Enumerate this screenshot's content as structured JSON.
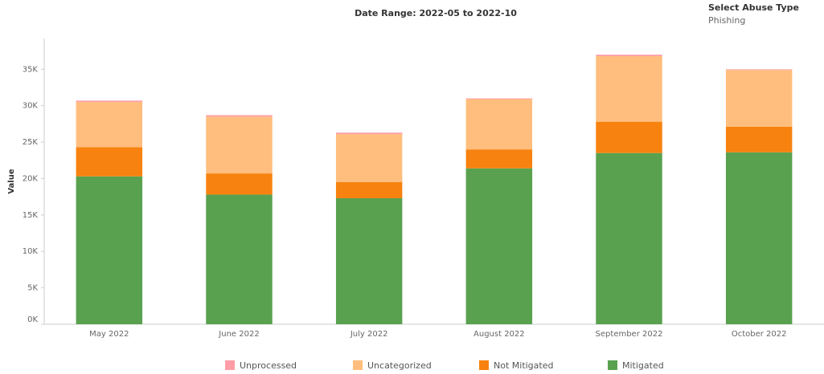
{
  "chart_data": {
    "type": "stacked_bar",
    "title": "Date Range: 2022-05 to 2022-10",
    "filter_label": "Select Abuse Type",
    "filter_value": "Phishing",
    "ylabel": "Value",
    "categories": [
      "May 2022",
      "June 2022",
      "July 2022",
      "August 2022",
      "September 2022",
      "October 2022"
    ],
    "series": [
      {
        "name": "Unprocessed",
        "color": "#ff9da7",
        "values": [
          200,
          200,
          200,
          100,
          200,
          100
        ]
      },
      {
        "name": "Uncategorized",
        "color": "#ffbe7d",
        "values": [
          6200,
          7800,
          6600,
          6900,
          9000,
          7800
        ]
      },
      {
        "name": "Not Mitigated",
        "color": "#f8820f",
        "values": [
          4000,
          2900,
          2200,
          2600,
          4300,
          3500
        ]
      },
      {
        "name": "Mitigated",
        "color": "#59a14f",
        "values": [
          20300,
          17800,
          17300,
          21400,
          23500,
          23600
        ]
      }
    ],
    "ylim": [
      0,
      39000
    ],
    "yticks": [
      {
        "value": 0,
        "label": "0K"
      },
      {
        "value": 5000,
        "label": "5K"
      },
      {
        "value": 10000,
        "label": "10K"
      },
      {
        "value": 15000,
        "label": "15K"
      },
      {
        "value": 20000,
        "label": "20K"
      },
      {
        "value": 25000,
        "label": "25K"
      },
      {
        "value": 30000,
        "label": "30K"
      },
      {
        "value": 35000,
        "label": "35K"
      }
    ]
  }
}
